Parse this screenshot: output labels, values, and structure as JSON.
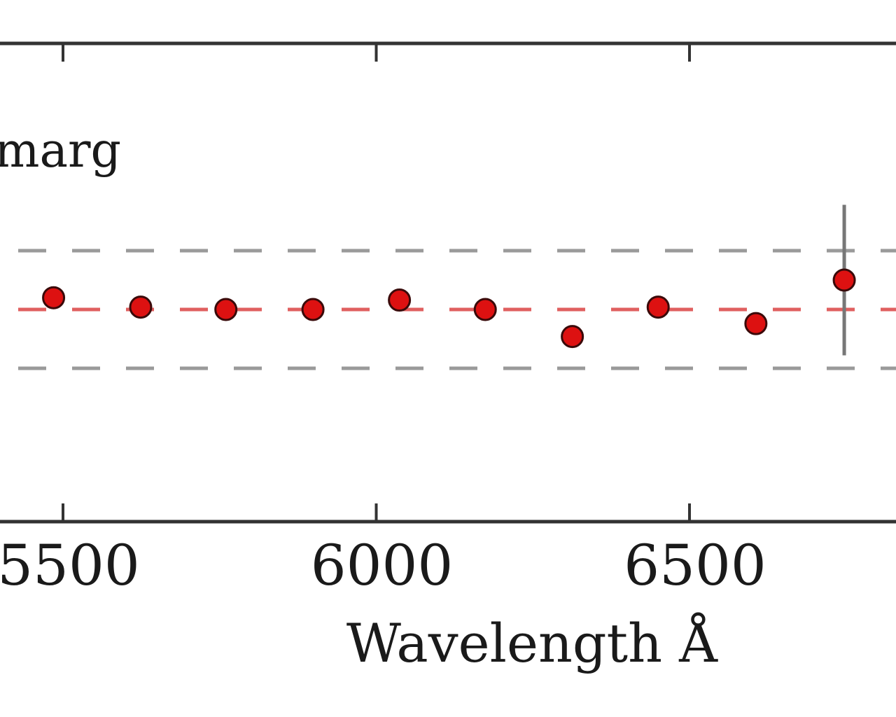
{
  "chart_data": {
    "type": "scatter",
    "title": "",
    "xlabel": "Wavelength Å",
    "ylabel": "",
    "legend": {
      "text": "marg",
      "placement": "top-left"
    },
    "x_ticks": [
      5500,
      6000,
      6500
    ],
    "x_tick_labels": [
      "5500",
      "6000",
      "6500"
    ],
    "xlim": [
      5450,
      6800
    ],
    "ylim": [
      -1.3,
      1.3
    ],
    "grid": false,
    "reference_lines": [
      {
        "y": 0.5,
        "style": "dashed",
        "color": "#9a9a9a"
      },
      {
        "y": 0.0,
        "style": "dashed",
        "color": "#e06060"
      },
      {
        "y": -0.5,
        "style": "dashed",
        "color": "#9a9a9a"
      }
    ],
    "series": [
      {
        "marker_color": "#dd1111",
        "points": [
          {
            "x": 5485,
            "y": 0.1,
            "err": 0.08
          },
          {
            "x": 5624,
            "y": 0.02,
            "err": 0.0
          },
          {
            "x": 5760,
            "y": 0.0,
            "err": 0.0
          },
          {
            "x": 5899,
            "y": 0.0,
            "err": 0.0
          },
          {
            "x": 6037,
            "y": 0.08,
            "err": 0.0
          },
          {
            "x": 6174,
            "y": 0.0,
            "err": 0.0
          },
          {
            "x": 6313,
            "y": -0.23,
            "err": 0.0
          },
          {
            "x": 6450,
            "y": 0.02,
            "err": 0.0
          },
          {
            "x": 6606,
            "y": -0.12,
            "err": 0.0
          },
          {
            "x": 6747,
            "y": 0.25,
            "err": 0.64
          }
        ]
      }
    ]
  }
}
